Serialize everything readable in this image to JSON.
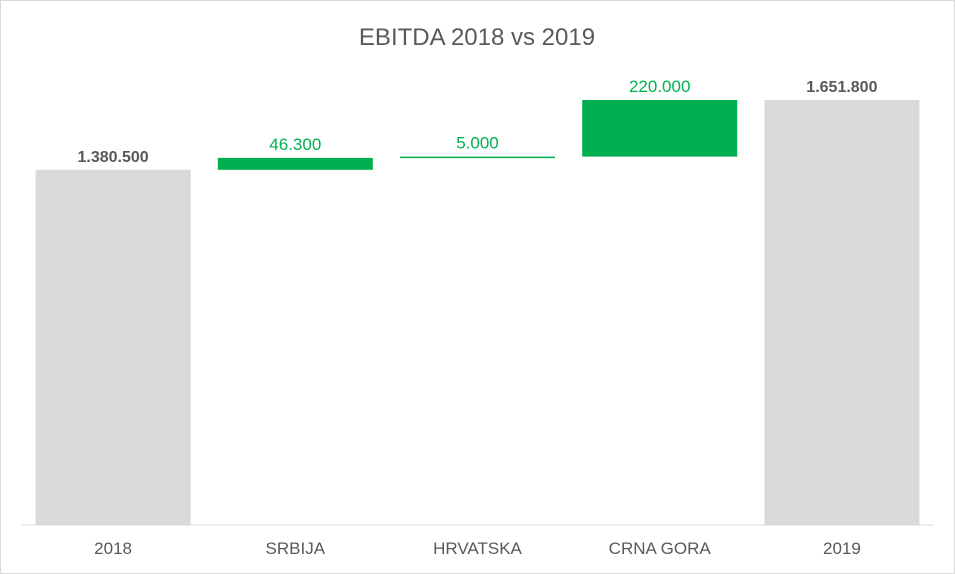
{
  "chart_data": {
    "type": "waterfall",
    "title": "EBITDA 2018 vs 2019",
    "categories": [
      "2018",
      "SRBIJA",
      "HRVATSKA",
      "CRNA GORA",
      "2019"
    ],
    "values": [
      1380500,
      46300,
      5000,
      220000,
      1651800
    ],
    "value_labels": [
      "1.380.500",
      "46.300",
      "5.000",
      "220.000",
      "1.651.800"
    ],
    "kinds": [
      "total",
      "increase",
      "increase",
      "increase",
      "total"
    ],
    "xlabel": "",
    "ylabel": "",
    "ylim": [
      0,
      1750000
    ],
    "grid": false,
    "legend": "none",
    "colors": {
      "total": "#d9d9d9",
      "increase": "#00b050",
      "total_label": "#595959",
      "delta_label": "#00b050",
      "axis": "#d9d9d9"
    }
  }
}
